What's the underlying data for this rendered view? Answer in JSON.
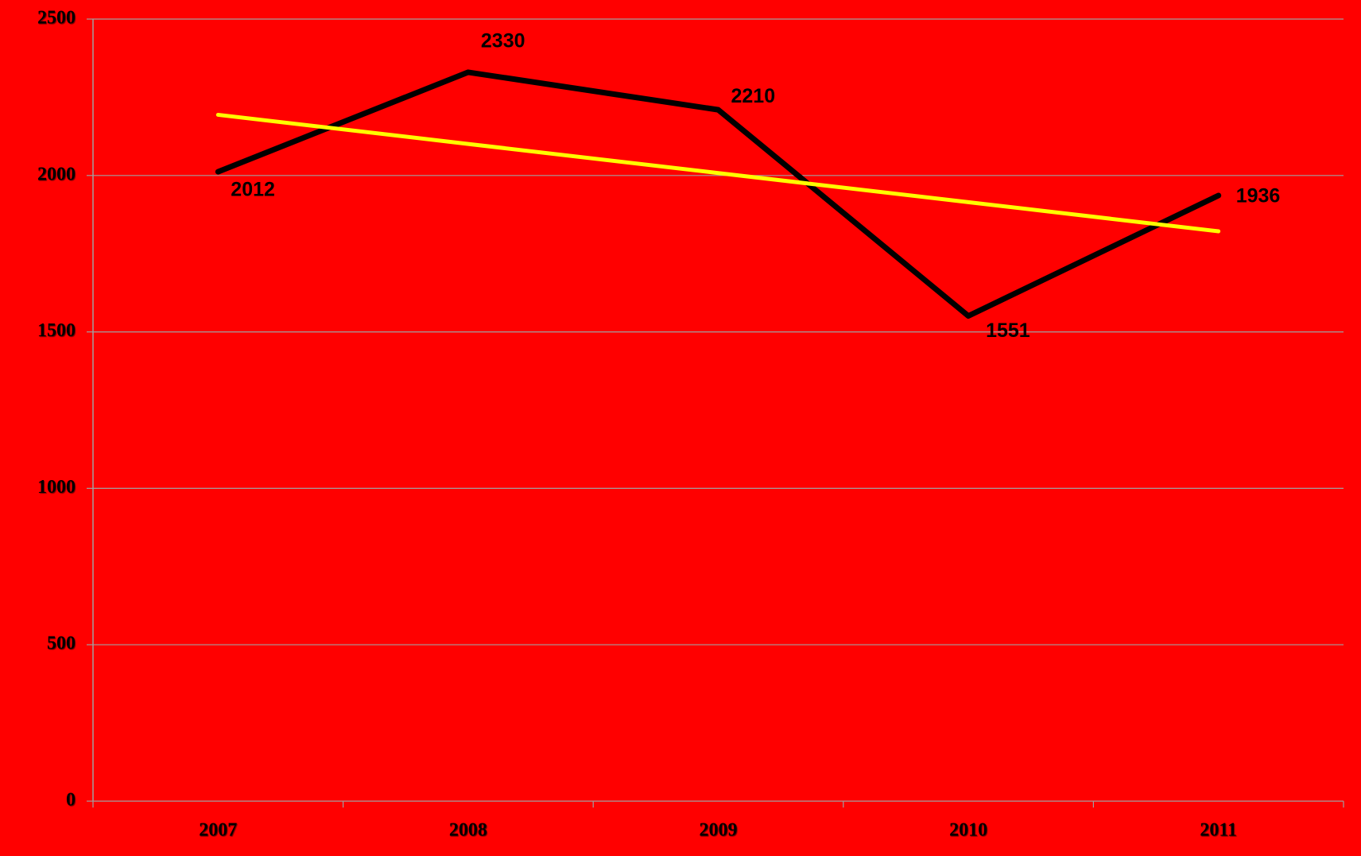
{
  "chart_data": {
    "type": "line",
    "categories": [
      "2007",
      "2008",
      "2009",
      "2010",
      "2011"
    ],
    "series": [
      {
        "color": "#000000",
        "values": [
          2012,
          2330,
          2210,
          1551,
          1936
        ]
      }
    ],
    "trendline": {
      "color": "#ffff00",
      "values": [
        2194,
        2100.9,
        2007.8,
        1914.7,
        1821.6
      ]
    },
    "ylim": [
      0,
      2500
    ],
    "yticks": [
      0,
      500,
      1000,
      1500,
      2000,
      2500
    ],
    "grid": true,
    "data_labels": true
  }
}
